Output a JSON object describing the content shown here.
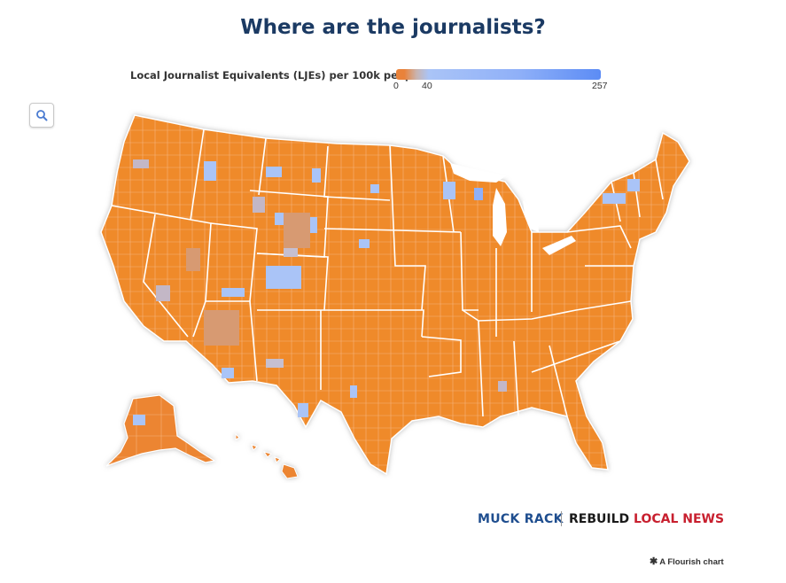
{
  "title": "Where are the journalists?",
  "legend": {
    "label": "Local Journalist Equivalents (LJEs) per 100k people",
    "ticks": [
      "0",
      "40",
      "257"
    ],
    "colors": {
      "low": "#e9823a",
      "mid": "#aac4f7",
      "high": "#5c8cf5"
    }
  },
  "zoom_icon": "search-icon",
  "map": {
    "region": "United States counties",
    "colors": {
      "land": "#ef8a2b",
      "border": "#ffffff",
      "shadow": "#d6d6d6"
    }
  },
  "logos": {
    "muck_rack": "MUCK RACK",
    "rebuild": "REBUILD",
    "local_news": "LOCAL NEWS"
  },
  "footer": {
    "flourish": "A Flourish chart"
  }
}
